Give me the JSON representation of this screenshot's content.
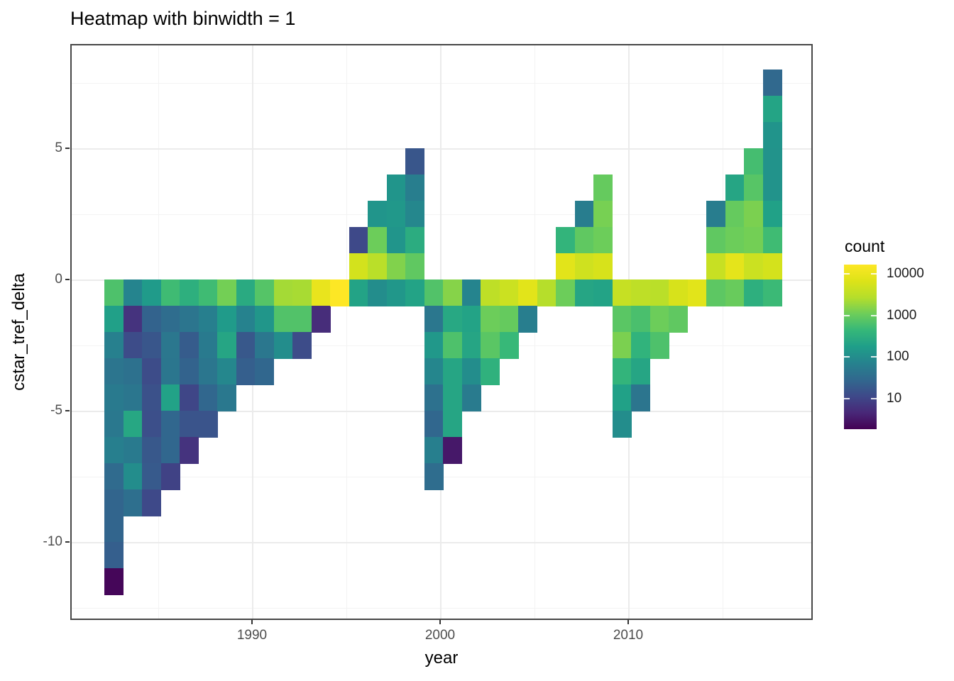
{
  "title": "Heatmap with binwidth = 1",
  "axes": {
    "x": {
      "title": "year",
      "ticks": [
        {
          "value": 1990,
          "label": "1990"
        },
        {
          "value": 2000,
          "label": "2000"
        },
        {
          "value": 2010,
          "label": "2010"
        }
      ]
    },
    "y": {
      "title": "cstar_tref_delta",
      "ticks": [
        {
          "value": 5,
          "label": "5"
        },
        {
          "value": 0,
          "label": "0"
        },
        {
          "value": -5,
          "label": "-5"
        },
        {
          "value": -10,
          "label": "-10"
        }
      ]
    }
  },
  "legend": {
    "title": "count",
    "scale": "log10",
    "colormap": "viridis",
    "ticks": [
      {
        "value": 10000,
        "label": "10000"
      },
      {
        "value": 1000,
        "label": "1000"
      },
      {
        "value": 100,
        "label": "100"
      },
      {
        "value": 10,
        "label": "10"
      }
    ]
  },
  "colors": {
    "viridis_low": "#440154",
    "viridis_high": "#fde725",
    "panel_background": "#ffffff",
    "grid_major": "#ebebeb",
    "grid_minor": "#f3f3f3",
    "panel_border": "#474747",
    "tick_label": "#4d4d4d"
  },
  "chart_data": {
    "type": "heatmap",
    "title": "Heatmap with binwidth = 1",
    "xlabel": "year",
    "ylabel": "cstar_tref_delta",
    "x_binwidth": 1,
    "y_binwidth": 1,
    "x_axis_ticks": [
      1990,
      2000,
      2010
    ],
    "y_axis_ticks": [
      5,
      0,
      -5,
      -10
    ],
    "x_range_shown": [
      1980.5,
      2019.5
    ],
    "y_range_shown": [
      -13,
      8.7
    ],
    "legend_title": "count",
    "legend_scale": "log10",
    "legend_tick_values": [
      10000,
      1000,
      100,
      10
    ],
    "count_range_approx": [
      2,
      17000
    ],
    "cells_format": [
      "year_bin_start",
      "delta_bin_start",
      "count_estimate"
    ],
    "cells": [
      [
        1982,
        -1,
        650
      ],
      [
        1982,
        -2,
        185
      ],
      [
        1982,
        -3,
        65
      ],
      [
        1982,
        -4,
        43
      ],
      [
        1982,
        -5,
        52
      ],
      [
        1982,
        -6,
        48
      ],
      [
        1982,
        -7,
        62
      ],
      [
        1982,
        -8,
        30
      ],
      [
        1982,
        -9,
        25
      ],
      [
        1982,
        -10,
        25
      ],
      [
        1982,
        -11,
        21
      ],
      [
        1982,
        -12,
        2
      ],
      [
        1983,
        -1,
        74
      ],
      [
        1983,
        -2,
        6
      ],
      [
        1983,
        -3,
        12
      ],
      [
        1983,
        -4,
        38
      ],
      [
        1983,
        -5,
        45
      ],
      [
        1983,
        -6,
        235
      ],
      [
        1983,
        -7,
        52
      ],
      [
        1983,
        -8,
        97
      ],
      [
        1983,
        -9,
        35
      ],
      [
        1984,
        -1,
        155
      ],
      [
        1984,
        -2,
        24
      ],
      [
        1984,
        -3,
        16
      ],
      [
        1984,
        -4,
        12
      ],
      [
        1984,
        -5,
        14
      ],
      [
        1984,
        -6,
        13
      ],
      [
        1984,
        -7,
        17
      ],
      [
        1984,
        -8,
        18
      ],
      [
        1984,
        -9,
        11
      ],
      [
        1985,
        -1,
        510
      ],
      [
        1985,
        -2,
        33
      ],
      [
        1985,
        -3,
        47
      ],
      [
        1985,
        -4,
        45
      ],
      [
        1985,
        -5,
        195
      ],
      [
        1985,
        -6,
        27
      ],
      [
        1985,
        -7,
        27
      ],
      [
        1985,
        -8,
        9
      ],
      [
        1986,
        -1,
        325
      ],
      [
        1986,
        -2,
        43
      ],
      [
        1986,
        -3,
        19
      ],
      [
        1986,
        -4,
        24
      ],
      [
        1986,
        -5,
        10
      ],
      [
        1986,
        -6,
        15
      ],
      [
        1986,
        -7,
        6
      ],
      [
        1987,
        -1,
        510
      ],
      [
        1987,
        -2,
        62
      ],
      [
        1987,
        -3,
        52
      ],
      [
        1987,
        -4,
        45
      ],
      [
        1987,
        -5,
        27
      ],
      [
        1987,
        -6,
        15
      ],
      [
        1988,
        -1,
        1170
      ],
      [
        1988,
        -2,
        155
      ],
      [
        1988,
        -3,
        225
      ],
      [
        1988,
        -4,
        80
      ],
      [
        1988,
        -5,
        48
      ],
      [
        1989,
        -1,
        270
      ],
      [
        1989,
        -2,
        68
      ],
      [
        1989,
        -3,
        17
      ],
      [
        1989,
        -4,
        21
      ],
      [
        1990,
        -1,
        730
      ],
      [
        1990,
        -2,
        133
      ],
      [
        1990,
        -3,
        47
      ],
      [
        1990,
        -4,
        27
      ],
      [
        1991,
        -1,
        2150
      ],
      [
        1991,
        -2,
        690
      ],
      [
        1991,
        -3,
        97
      ],
      [
        1992,
        -1,
        2270
      ],
      [
        1992,
        -2,
        690
      ],
      [
        1992,
        -3,
        12
      ],
      [
        1993,
        -1,
        9300
      ],
      [
        1993,
        -2,
        5
      ],
      [
        1994,
        -1,
        17000
      ],
      [
        1995,
        1,
        11
      ],
      [
        1995,
        0,
        5300
      ],
      [
        1995,
        -1,
        205
      ],
      [
        1996,
        2,
        127
      ],
      [
        1996,
        1,
        1070
      ],
      [
        1996,
        0,
        3000
      ],
      [
        1996,
        -1,
        97
      ],
      [
        1997,
        3,
        127
      ],
      [
        1997,
        2,
        140
      ],
      [
        1997,
        1,
        127
      ],
      [
        1997,
        0,
        1400
      ],
      [
        1997,
        -1,
        135
      ],
      [
        1998,
        4,
        16
      ],
      [
        1998,
        3,
        60
      ],
      [
        1998,
        2,
        81
      ],
      [
        1998,
        1,
        290
      ],
      [
        1998,
        0,
        870
      ],
      [
        1998,
        -1,
        205
      ],
      [
        1999,
        -1,
        690
      ],
      [
        1999,
        -2,
        47
      ],
      [
        1999,
        -3,
        140
      ],
      [
        1999,
        -4,
        77
      ],
      [
        1999,
        -5,
        38
      ],
      [
        1999,
        -6,
        27
      ],
      [
        1999,
        -7,
        62
      ],
      [
        1999,
        -8,
        33
      ],
      [
        2000,
        -1,
        1480
      ],
      [
        2000,
        -2,
        245
      ],
      [
        2000,
        -3,
        645
      ],
      [
        2000,
        -4,
        225
      ],
      [
        2000,
        -5,
        225
      ],
      [
        2000,
        -6,
        225
      ],
      [
        2000,
        -7,
        3
      ],
      [
        2001,
        -1,
        74
      ],
      [
        2001,
        -2,
        205
      ],
      [
        2001,
        -3,
        225
      ],
      [
        2001,
        -4,
        97
      ],
      [
        2001,
        -5,
        54
      ],
      [
        2002,
        -1,
        3300
      ],
      [
        2002,
        -2,
        1070
      ],
      [
        2002,
        -3,
        790
      ],
      [
        2002,
        -4,
        345
      ],
      [
        2003,
        -1,
        4380
      ],
      [
        2003,
        -2,
        950
      ],
      [
        2003,
        -3,
        445
      ],
      [
        2004,
        -1,
        7700
      ],
      [
        2004,
        -2,
        60
      ],
      [
        2005,
        -1,
        2740
      ],
      [
        2006,
        1,
        390
      ],
      [
        2006,
        0,
        7700
      ],
      [
        2006,
        -1,
        1070
      ],
      [
        2007,
        2,
        57
      ],
      [
        2007,
        1,
        870
      ],
      [
        2007,
        0,
        4800
      ],
      [
        2007,
        -1,
        225
      ],
      [
        2008,
        3,
        950
      ],
      [
        2008,
        2,
        1230
      ],
      [
        2008,
        1,
        1070
      ],
      [
        2008,
        0,
        5800
      ],
      [
        2008,
        -1,
        205
      ],
      [
        2009,
        -1,
        3990
      ],
      [
        2009,
        -2,
        790
      ],
      [
        2009,
        -3,
        1290
      ],
      [
        2009,
        -4,
        390
      ],
      [
        2009,
        -5,
        190
      ],
      [
        2009,
        -6,
        97
      ],
      [
        2010,
        -1,
        3300
      ],
      [
        2010,
        -2,
        610
      ],
      [
        2010,
        -3,
        365
      ],
      [
        2010,
        -4,
        225
      ],
      [
        2010,
        -5,
        43
      ],
      [
        2011,
        -1,
        3000
      ],
      [
        2011,
        -2,
        1070
      ],
      [
        2011,
        -3,
        645
      ],
      [
        2012,
        -1,
        5810
      ],
      [
        2012,
        -2,
        870
      ],
      [
        2013,
        -1,
        7700
      ],
      [
        2014,
        2,
        57
      ],
      [
        2014,
        1,
        870
      ],
      [
        2014,
        0,
        4000
      ],
      [
        2014,
        -1,
        830
      ],
      [
        2015,
        3,
        225
      ],
      [
        2015,
        2,
        950
      ],
      [
        2015,
        1,
        1070
      ],
      [
        2015,
        0,
        8460
      ],
      [
        2015,
        -1,
        1000
      ],
      [
        2016,
        4,
        560
      ],
      [
        2016,
        3,
        760
      ],
      [
        2016,
        2,
        1290
      ],
      [
        2016,
        1,
        1170
      ],
      [
        2016,
        0,
        4400
      ],
      [
        2016,
        -1,
        325
      ],
      [
        2017,
        7,
        28
      ],
      [
        2017,
        6,
        215
      ],
      [
        2017,
        5,
        125
      ],
      [
        2017,
        4,
        120
      ],
      [
        2017,
        3,
        120
      ],
      [
        2017,
        2,
        190
      ],
      [
        2017,
        1,
        510
      ],
      [
        2017,
        0,
        5500
      ],
      [
        2017,
        -1,
        470
      ]
    ]
  }
}
